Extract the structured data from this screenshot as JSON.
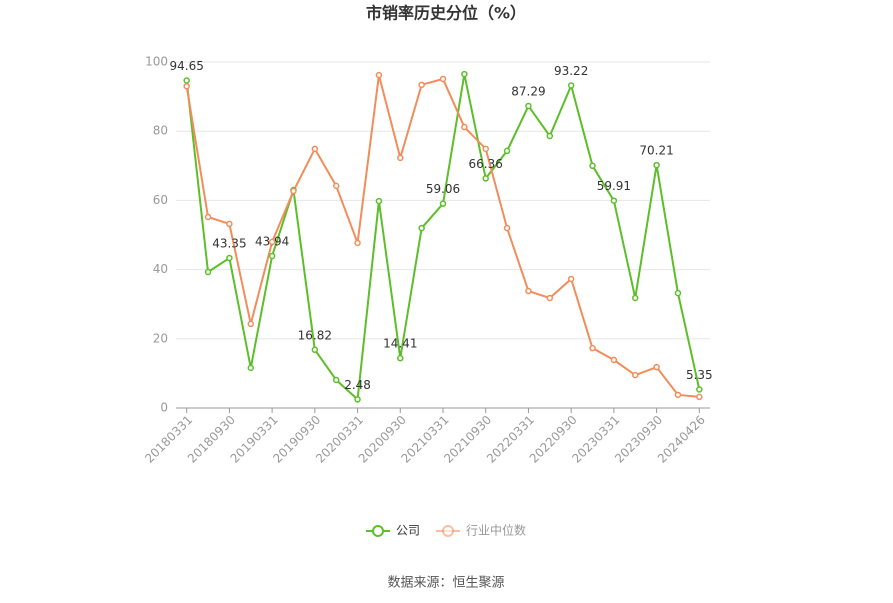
{
  "chart_data": {
    "type": "line",
    "title": "市销率历史分位（%）",
    "categories": [
      "20180331",
      null,
      "20180930",
      null,
      "20190331",
      null,
      "20190930",
      null,
      "20200331",
      null,
      "20200930",
      null,
      "20210331",
      null,
      "20210930",
      null,
      "20220331",
      null,
      "20220930",
      null,
      "20230331",
      null,
      "20230930",
      null,
      "20240426"
    ],
    "series": [
      {
        "name": "公司",
        "color": "#5cbf2a",
        "data_labels": true,
        "values": [
          94.65,
          39.3,
          43.35,
          11.6,
          43.94,
          63,
          16.82,
          8.1,
          2.48,
          59.8,
          14.41,
          52,
          59.06,
          96.5,
          66.36,
          74.3,
          87.29,
          78.6,
          93.22,
          70,
          59.91,
          31.8,
          70.21,
          33.2,
          5.35
        ]
      },
      {
        "name": "行业中位数",
        "color": "#f28d5b",
        "data_labels": false,
        "values": [
          93,
          55.2,
          53.2,
          24.3,
          48,
          62.7,
          74.9,
          64.2,
          47.7,
          96.2,
          72.3,
          93.4,
          95.1,
          81.2,
          74.9,
          52,
          33.8,
          31.8,
          37.3,
          17.3,
          13.9,
          9.5,
          11.8,
          3.8,
          3.2
        ]
      }
    ],
    "ylim": [
      0,
      100
    ],
    "yticks": [
      0,
      20,
      40,
      60,
      80,
      100
    ],
    "grid": true,
    "legend": "bottom",
    "source": "数据来源：恒生聚源"
  }
}
